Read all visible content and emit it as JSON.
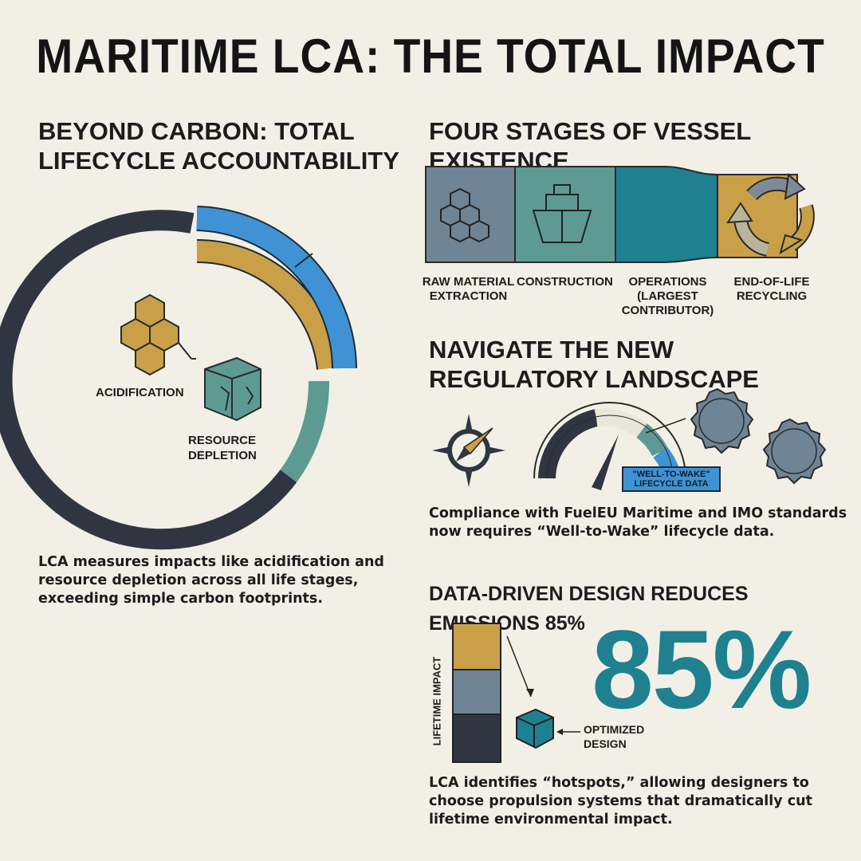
{
  "title": "MARITIME LCA: THE TOTAL IMPACT",
  "left": {
    "heading_line1": "BEYOND CARBON: TOTAL",
    "heading_line2": "LIFECYCLE ACCOUNTABILITY",
    "labels": {
      "acidification": "ACIDIFICATION",
      "resource_line1": "RESOURCE",
      "resource_line2": "DEPLETION"
    },
    "body_line1": "LCA measures impacts like acidification and",
    "body_line2": "resource depletion across all life stages,",
    "body_line3": "exceeding simple carbon footprints."
  },
  "stages": {
    "heading": "FOUR STAGES OF VESSEL EXISTENCE",
    "items": [
      {
        "line1": "RAW MATERIAL",
        "line2": "EXTRACTION",
        "line3": "",
        "icon": "cubes-icon",
        "color": "#6f8494"
      },
      {
        "line1": "CONSTRUCTION",
        "line2": "",
        "line3": "",
        "icon": "ship-icon",
        "color": "#5d9b92"
      },
      {
        "line1": "OPERATIONS",
        "line2": "(LARGEST",
        "line3": "CONTRIBUTOR)",
        "icon": "wave-icon",
        "color": "#1f8090"
      },
      {
        "line1": "END-OF-LIFE",
        "line2": "RECYCLING",
        "line3": "",
        "icon": "recycle-icon",
        "color": "#c9a048"
      }
    ]
  },
  "regulatory": {
    "heading_line1": "NAVIGATE THE NEW",
    "heading_line2": "REGULATORY LANDSCAPE",
    "badge_line1": "\"WELL-TO-WAKE\"",
    "badge_line2": "LIFECYCLE DATA",
    "body_line1": "Compliance with FuelEU Maritime and IMO standards",
    "body_line2": "now requires “Well-to-Wake” lifecycle data."
  },
  "design": {
    "heading": "DATA-DRIVEN DESIGN REDUCES EMISSIONS 85%",
    "big_number": "85%",
    "axis_label": "LIFETIME IMPACT",
    "optimized_line1": "OPTIMIZED",
    "optimized_line2": "DESIGN",
    "body_line1": "LCA identifies “hotspots,” allowing designers to",
    "body_line2": "choose propulsion systems that dramatically cut",
    "body_line3": "lifetime environmental impact."
  },
  "colors": {
    "background": "#f2f0e6",
    "navy": "#2f3642",
    "gold": "#c9a048",
    "blue": "#3f93d4",
    "teal": "#5d9b92",
    "deep_teal": "#1f8090",
    "slate": "#6f8494"
  }
}
